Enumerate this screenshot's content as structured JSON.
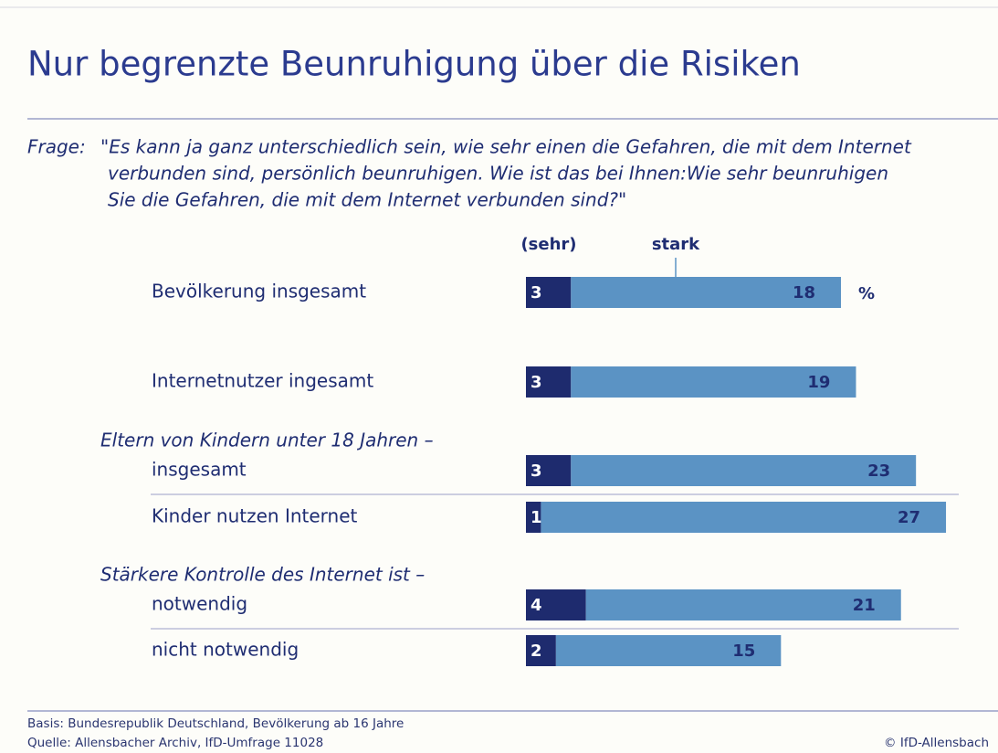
{
  "chart_data": {
    "type": "stacked-bar-horizontal",
    "title": "Nur begrenzte Beunruhigung über die Risiken",
    "question_label": "Frage:",
    "question": [
      "\"Es kann ja ganz unterschiedlich sein, wie sehr einen die Gefahren, die mit dem Internet",
      "verbunden sind, persönlich beunruhigen. Wie ist das bei Ihnen:Wie sehr beunruhigen",
      "Sie die Gefahren, die mit dem Internet verbunden sind?\""
    ],
    "categories": [
      "Bevölkerung insgesamt",
      "Internetnutzer ingesamt",
      "insgesamt",
      "Kinder nutzen Internet",
      "notwendig",
      "nicht notwendig"
    ],
    "group_labels": [
      "Eltern von Kindern unter 18 Jahren –",
      "Stärkere Kontrolle des Internet ist –"
    ],
    "series": [
      {
        "name": "(sehr)",
        "color": "#1e2b6e",
        "values": [
          3,
          3,
          3,
          1,
          4,
          2
        ]
      },
      {
        "name": "stark",
        "color": "#5b93c4",
        "values": [
          18,
          19,
          23,
          27,
          21,
          15
        ]
      }
    ],
    "unit": "%",
    "footnotes": [
      "Basis: Bundesrepublik Deutschland, Bevölkerung ab 16 Jahre",
      "Quelle: Allensbacher Archiv, IfD-Umfrage 11028"
    ],
    "credit": "© IfD-Allensbach"
  }
}
